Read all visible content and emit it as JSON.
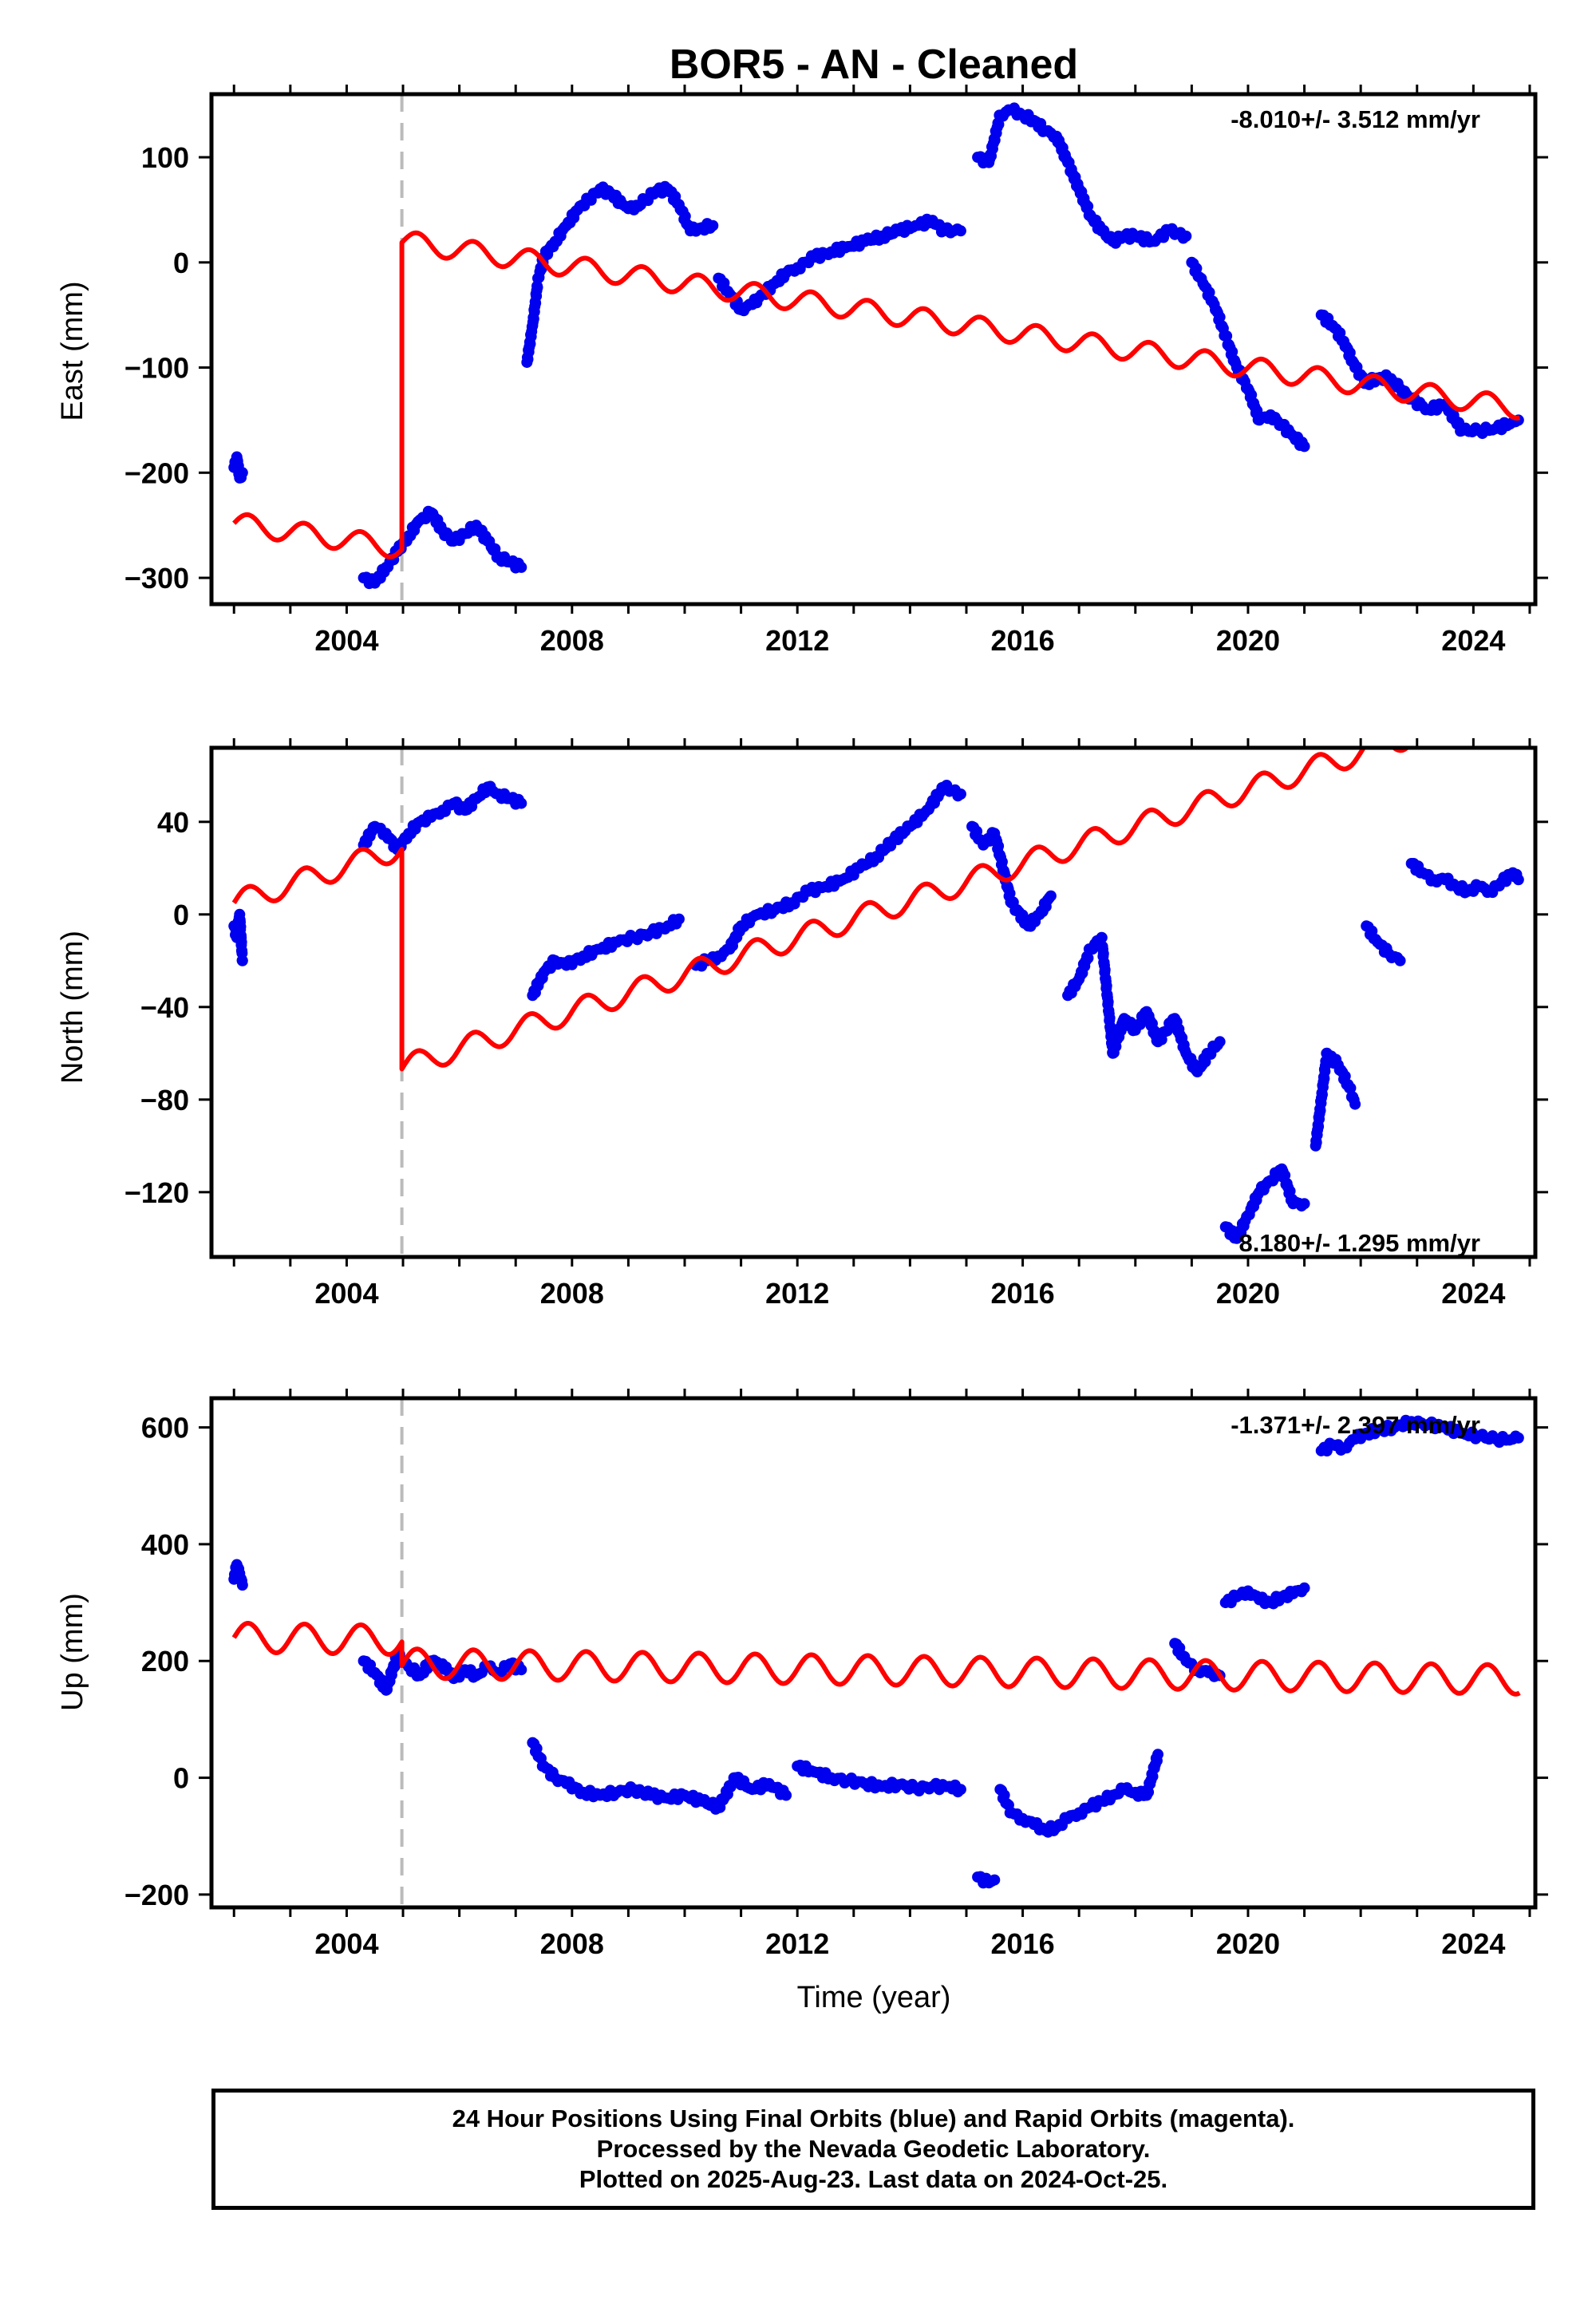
{
  "title": "BOR5  - AN - Cleaned",
  "xlabel": "Time (year)",
  "footer": {
    "line1": "24 Hour Positions Using Final Orbits (blue) and Rapid Orbits (magenta).",
    "line2": "Processed by the Nevada Geodetic Laboratory.",
    "line3": "Plotted on 2025-Aug-23. Last data on 2024-Oct-25."
  },
  "colors": {
    "final_points": "#0000ee",
    "model": "#ff0000",
    "step_line": "#bbbbbb",
    "frame": "#000000"
  },
  "chart_data": [
    {
      "type": "scatter",
      "ylabel": "East (mm)",
      "rate_text": "-8.010+/- 3.512 mm/yr",
      "xlim": [
        2001.6,
        2025.1
      ],
      "ylim": [
        -325,
        160
      ],
      "xticks": [
        2004,
        2008,
        2012,
        2016,
        2020,
        2024
      ],
      "yticks": [
        -300,
        -200,
        -100,
        0,
        100
      ],
      "step_epoch": 2004.98,
      "model": {
        "before": [
          -248,
          -8
        ],
        "after": [
          44,
          -8
        ],
        "t0": 2002.0,
        "amp": 10,
        "break_drop": -290
      },
      "series": [
        {
          "x": [
            2002.0,
            2002.05,
            2002.1,
            2002.15
          ],
          "y": [
            -195,
            -185,
            -205,
            -200
          ]
        },
        {
          "x": [
            2004.3,
            2004.5,
            2004.7,
            2004.9,
            2005.1,
            2005.3,
            2005.5,
            2005.7,
            2005.9,
            2006.1,
            2006.3,
            2006.5,
            2006.7,
            2006.9,
            2007.1
          ],
          "y": [
            -300,
            -305,
            -290,
            -275,
            -260,
            -245,
            -238,
            -255,
            -265,
            -258,
            -250,
            -265,
            -280,
            -285,
            -290
          ]
        },
        {
          "x": [
            2007.2,
            2007.3,
            2007.4,
            2007.5,
            2007.7,
            2007.9,
            2008.1,
            2008.3,
            2008.5,
            2008.7,
            2008.9,
            2009.1,
            2009.3,
            2009.5,
            2009.7,
            2009.9,
            2010.1,
            2010.3,
            2010.5
          ],
          "y": [
            -95,
            -60,
            -15,
            5,
            20,
            35,
            50,
            60,
            70,
            65,
            55,
            50,
            60,
            68,
            70,
            55,
            30,
            33,
            35
          ]
        },
        {
          "x": [
            2010.6,
            2010.8,
            2011.0,
            2011.2,
            2011.4,
            2011.6,
            2011.8,
            2012.0,
            2012.3,
            2012.6,
            2012.9,
            2013.2,
            2013.5,
            2013.8,
            2014.1,
            2014.4,
            2014.6,
            2014.9
          ],
          "y": [
            -15,
            -30,
            -45,
            -40,
            -30,
            -20,
            -10,
            -5,
            5,
            10,
            15,
            20,
            25,
            30,
            35,
            40,
            30,
            30
          ]
        },
        {
          "x": [
            2015.2,
            2015.4,
            2015.6,
            2015.8,
            2016.0,
            2016.2,
            2016.4,
            2016.6,
            2016.8,
            2017.0,
            2017.2,
            2017.4,
            2017.6,
            2017.8,
            2018.0,
            2018.3,
            2018.6,
            2018.9
          ],
          "y": [
            100,
            95,
            140,
            145,
            140,
            135,
            125,
            120,
            95,
            70,
            45,
            30,
            20,
            25,
            25,
            20,
            30,
            25
          ]
        },
        {
          "x": [
            2019.0,
            2019.2,
            2019.4,
            2019.6,
            2019.8,
            2020.0,
            2020.2,
            2020.4,
            2020.6,
            2020.8,
            2021.0
          ],
          "y": [
            0,
            -20,
            -40,
            -70,
            -100,
            -120,
            -150,
            -145,
            -155,
            -165,
            -175
          ]
        },
        {
          "x": [
            2021.3,
            2021.5,
            2021.7,
            2021.9,
            2022.1,
            2022.3,
            2022.5,
            2022.7,
            2022.9,
            2023.2,
            2023.5,
            2023.8,
            2024.1,
            2024.4,
            2024.7,
            2024.8
          ],
          "y": [
            -50,
            -60,
            -75,
            -100,
            -115,
            -110,
            -110,
            -120,
            -130,
            -140,
            -135,
            -160,
            -160,
            -158,
            -152,
            -150
          ]
        }
      ]
    },
    {
      "type": "scatter",
      "ylabel": "North (mm)",
      "rate_text": "8.180+/- 1.295 mm/yr",
      "xlim": [
        2001.6,
        2025.1
      ],
      "ylim": [
        -148,
        72
      ],
      "xticks": [
        2004,
        2008,
        2012,
        2016,
        2020,
        2024
      ],
      "yticks": [
        -120,
        -80,
        -40,
        0,
        40
      ],
      "step_epoch": 2004.98,
      "model": {
        "before": [
          5,
          8
        ],
        "after": [
          -90,
          8
        ],
        "t0": 2002.0,
        "amp": 5,
        "break_drop": -118
      },
      "series": [
        {
          "x": [
            2002.0,
            2002.05,
            2002.1,
            2002.15
          ],
          "y": [
            -5,
            -10,
            0,
            -20
          ]
        },
        {
          "x": [
            2004.3,
            2004.5,
            2004.7,
            2004.9,
            2005.1,
            2005.3,
            2005.5,
            2005.7,
            2005.9,
            2006.1,
            2006.3,
            2006.5,
            2006.7,
            2006.9,
            2007.1
          ],
          "y": [
            30,
            38,
            35,
            28,
            35,
            40,
            42,
            45,
            48,
            45,
            50,
            55,
            52,
            50,
            48
          ]
        },
        {
          "x": [
            2007.3,
            2007.5,
            2007.7,
            2007.9,
            2008.2,
            2008.5,
            2008.8,
            2009.1,
            2009.4,
            2009.7,
            2009.9
          ],
          "y": [
            -35,
            -25,
            -20,
            -22,
            -18,
            -15,
            -12,
            -10,
            -8,
            -5,
            -2
          ]
        },
        {
          "x": [
            2010.2,
            2010.4,
            2010.6,
            2010.8,
            2011.0,
            2011.3,
            2011.6,
            2011.9,
            2012.2,
            2012.5,
            2012.8,
            2013.1,
            2013.4,
            2013.7,
            2014.0,
            2014.3,
            2014.6,
            2014.9
          ],
          "y": [
            -22,
            -20,
            -18,
            -15,
            -5,
            0,
            2,
            5,
            10,
            12,
            15,
            20,
            25,
            32,
            38,
            45,
            55,
            52
          ]
        },
        {
          "x": [
            2015.1,
            2015.3,
            2015.5,
            2015.8,
            2016.1,
            2016.3,
            2016.5
          ],
          "y": [
            38,
            30,
            35,
            5,
            -5,
            0,
            8
          ]
        },
        {
          "x": [
            2016.8,
            2017.0,
            2017.2,
            2017.4,
            2017.6,
            2017.8,
            2018.0,
            2018.2,
            2018.4,
            2018.7,
            2018.9,
            2019.1,
            2019.3,
            2019.5
          ],
          "y": [
            -35,
            -28,
            -15,
            -10,
            -60,
            -45,
            -50,
            -42,
            -55,
            -45,
            -60,
            -68,
            -60,
            -55
          ]
        },
        {
          "x": [
            2019.6,
            2019.8,
            2020.0,
            2020.2,
            2020.4,
            2020.6,
            2020.8,
            2021.0
          ],
          "y": [
            -135,
            -140,
            -130,
            -120,
            -115,
            -110,
            -125,
            -125
          ]
        },
        {
          "x": [
            2021.2,
            2021.4,
            2021.6,
            2021.8,
            2021.9
          ],
          "y": [
            -100,
            -60,
            -65,
            -75,
            -82
          ]
        },
        {
          "x": [
            2022.1,
            2022.3,
            2022.5,
            2022.7
          ],
          "y": [
            -5,
            -12,
            -17,
            -20
          ]
        },
        {
          "x": [
            2022.9,
            2023.1,
            2023.3,
            2023.5,
            2023.7,
            2023.9,
            2024.1,
            2024.3,
            2024.5,
            2024.7,
            2024.8
          ],
          "y": [
            22,
            18,
            15,
            15,
            12,
            10,
            12,
            10,
            14,
            18,
            15
          ]
        }
      ]
    },
    {
      "type": "scatter",
      "ylabel": "Up (mm)",
      "rate_text": "-1.371+/- 2.397 mm/yr",
      "xlim": [
        2001.6,
        2025.1
      ],
      "ylim": [
        -222,
        650
      ],
      "xticks": [
        2004,
        2008,
        2012,
        2016,
        2020,
        2024
      ],
      "yticks": [
        -200,
        0,
        200,
        400,
        600
      ],
      "step_epoch": 2004.98,
      "model": {
        "before": [
          240,
          -1.4
        ],
        "after": [
          200,
          -1.4
        ],
        "t0": 2002.0,
        "amp": 25,
        "break_drop": 0
      },
      "series": [
        {
          "x": [
            2002.0,
            2002.05,
            2002.1,
            2002.15
          ],
          "y": [
            340,
            365,
            350,
            330
          ]
        },
        {
          "x": [
            2004.3,
            2004.5,
            2004.7,
            2004.9,
            2005.1,
            2005.3,
            2005.5,
            2005.7,
            2005.9,
            2006.1,
            2006.3,
            2006.5,
            2006.7,
            2006.9,
            2007.1
          ],
          "y": [
            200,
            180,
            150,
            210,
            190,
            175,
            200,
            195,
            170,
            185,
            175,
            190,
            180,
            195,
            185
          ]
        },
        {
          "x": [
            2007.3,
            2007.5,
            2007.7,
            2007.9,
            2008.2,
            2008.5,
            2008.8,
            2009.1,
            2009.4,
            2009.7,
            2010.0,
            2010.3,
            2010.6,
            2010.9,
            2011.2,
            2011.5,
            2011.8
          ],
          "y": [
            60,
            20,
            0,
            -10,
            -25,
            -30,
            -25,
            -20,
            -30,
            -35,
            -30,
            -40,
            -50,
            0,
            -20,
            -10,
            -30
          ]
        },
        {
          "x": [
            2012.0,
            2012.3,
            2012.6,
            2012.9,
            2013.2,
            2013.5,
            2013.8,
            2014.1,
            2014.4,
            2014.7,
            2014.9
          ],
          "y": [
            20,
            10,
            0,
            -5,
            -10,
            -15,
            -12,
            -18,
            -15,
            -15,
            -20
          ]
        },
        {
          "x": [
            2015.2,
            2015.4,
            2015.5
          ],
          "y": [
            -170,
            -180,
            -175
          ]
        },
        {
          "x": [
            2015.6,
            2015.8,
            2016.0,
            2016.2,
            2016.4,
            2016.6,
            2016.8,
            2017.0,
            2017.2,
            2017.4,
            2017.6,
            2017.8,
            2018.0,
            2018.2,
            2018.4
          ],
          "y": [
            -20,
            -60,
            -70,
            -80,
            -90,
            -85,
            -70,
            -60,
            -50,
            -40,
            -30,
            -20,
            -25,
            -30,
            40
          ]
        },
        {
          "x": [
            2018.7,
            2018.9,
            2019.1,
            2019.3,
            2019.5
          ],
          "y": [
            230,
            200,
            185,
            180,
            175
          ]
        },
        {
          "x": [
            2019.6,
            2019.8,
            2020.0,
            2020.2,
            2020.4,
            2020.6,
            2020.8,
            2021.0
          ],
          "y": [
            300,
            310,
            320,
            305,
            300,
            310,
            315,
            325
          ]
        },
        {
          "x": [
            2021.3,
            2021.5,
            2021.7,
            2021.9,
            2022.1,
            2022.3,
            2022.6,
            2022.9,
            2023.2,
            2023.5,
            2023.8,
            2024.1,
            2024.4,
            2024.7,
            2024.8
          ],
          "y": [
            560,
            570,
            565,
            580,
            590,
            595,
            600,
            610,
            605,
            600,
            590,
            585,
            580,
            580,
            582
          ]
        }
      ]
    }
  ]
}
